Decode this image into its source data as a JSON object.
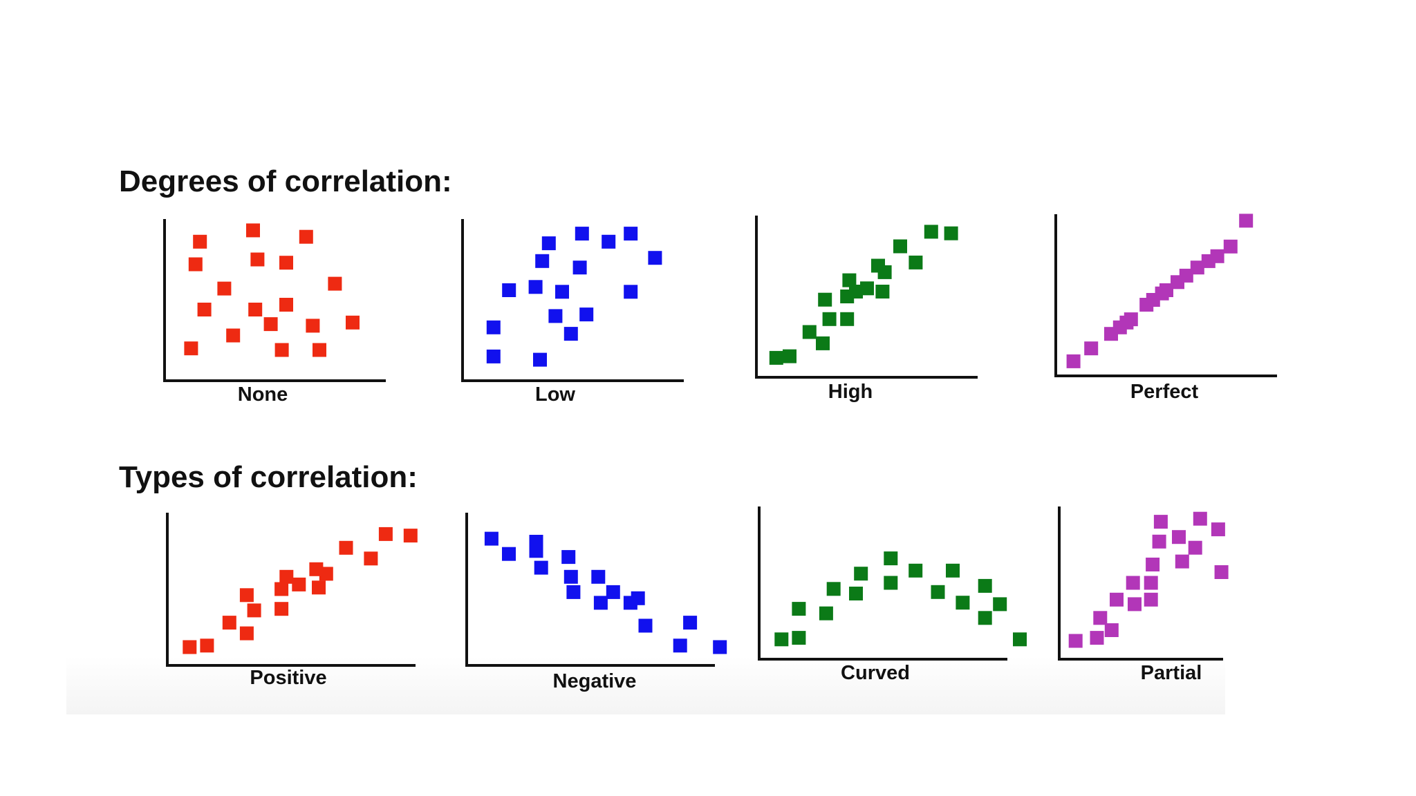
{
  "sections": [
    {
      "title": "Degrees of correlation:"
    },
    {
      "title": "Types of correlation:"
    }
  ],
  "chart_data": [
    {
      "type": "scatter",
      "xlabel": "None",
      "color": "#ee2a12",
      "xlim": [
        0,
        10
      ],
      "ylim": [
        0,
        10
      ],
      "points": [
        [
          1.6,
          8.6
        ],
        [
          4.0,
          9.3
        ],
        [
          6.4,
          8.9
        ],
        [
          1.4,
          7.2
        ],
        [
          4.2,
          7.5
        ],
        [
          5.5,
          7.3
        ],
        [
          2.7,
          5.7
        ],
        [
          7.7,
          6.0
        ],
        [
          1.8,
          4.4
        ],
        [
          4.1,
          4.4
        ],
        [
          5.5,
          4.7
        ],
        [
          6.7,
          3.4
        ],
        [
          3.1,
          2.8
        ],
        [
          4.8,
          3.5
        ],
        [
          8.5,
          3.6
        ],
        [
          1.2,
          2.0
        ],
        [
          5.3,
          1.9
        ],
        [
          7.0,
          1.9
        ]
      ]
    },
    {
      "type": "scatter",
      "xlabel": "Low",
      "color": "#1111ee",
      "xlim": [
        0,
        10
      ],
      "ylim": [
        0,
        10
      ],
      "points": [
        [
          1.4,
          3.3
        ],
        [
          1.4,
          1.5
        ],
        [
          3.5,
          1.3
        ],
        [
          2.1,
          5.6
        ],
        [
          3.3,
          5.8
        ],
        [
          4.5,
          5.5
        ],
        [
          3.6,
          7.4
        ],
        [
          4.2,
          4.0
        ],
        [
          5.6,
          4.1
        ],
        [
          4.9,
          2.9
        ],
        [
          3.9,
          8.5
        ],
        [
          5.3,
          7.0
        ],
        [
          5.4,
          9.1
        ],
        [
          6.6,
          8.6
        ],
        [
          7.6,
          9.1
        ],
        [
          8.7,
          7.6
        ],
        [
          7.6,
          5.5
        ]
      ]
    },
    {
      "type": "scatter",
      "xlabel": "High",
      "color": "#0b7a17",
      "xlim": [
        0,
        10
      ],
      "ylim": [
        0,
        10
      ],
      "points": [
        [
          0.9,
          1.2
        ],
        [
          1.5,
          1.3
        ],
        [
          2.4,
          2.8
        ],
        [
          3.0,
          2.1
        ],
        [
          3.1,
          4.8
        ],
        [
          3.3,
          3.6
        ],
        [
          4.1,
          3.6
        ],
        [
          4.1,
          5.0
        ],
        [
          4.2,
          6.0
        ],
        [
          4.5,
          5.3
        ],
        [
          5.0,
          5.5
        ],
        [
          5.5,
          6.9
        ],
        [
          5.8,
          6.5
        ],
        [
          5.7,
          5.3
        ],
        [
          6.5,
          8.1
        ],
        [
          7.2,
          7.1
        ],
        [
          7.9,
          9.0
        ],
        [
          8.8,
          8.9
        ]
      ]
    },
    {
      "type": "scatter",
      "xlabel": "Perfect",
      "color": "#b236b8",
      "xlim": [
        0,
        10
      ],
      "ylim": [
        0,
        10
      ],
      "points": [
        [
          0.8,
          0.9
        ],
        [
          1.6,
          1.7
        ],
        [
          2.5,
          2.6
        ],
        [
          2.9,
          3.0
        ],
        [
          3.2,
          3.3
        ],
        [
          3.4,
          3.5
        ],
        [
          4.1,
          4.4
        ],
        [
          4.4,
          4.7
        ],
        [
          4.8,
          5.1
        ],
        [
          5.0,
          5.3
        ],
        [
          5.5,
          5.8
        ],
        [
          5.9,
          6.2
        ],
        [
          6.4,
          6.7
        ],
        [
          6.9,
          7.1
        ],
        [
          7.3,
          7.4
        ],
        [
          7.9,
          8.0
        ],
        [
          8.6,
          9.6
        ]
      ]
    },
    {
      "type": "scatter",
      "xlabel": "Positive",
      "color": "#ee2a12",
      "xlim": [
        0,
        10
      ],
      "ylim": [
        0,
        10
      ],
      "points": [
        [
          0.9,
          1.2
        ],
        [
          1.6,
          1.3
        ],
        [
          2.5,
          2.8
        ],
        [
          3.2,
          2.1
        ],
        [
          3.2,
          4.6
        ],
        [
          3.5,
          3.6
        ],
        [
          4.6,
          3.7
        ],
        [
          4.6,
          5.0
        ],
        [
          4.8,
          5.8
        ],
        [
          5.3,
          5.3
        ],
        [
          6.0,
          6.3
        ],
        [
          6.4,
          6.0
        ],
        [
          6.1,
          5.1
        ],
        [
          7.2,
          7.7
        ],
        [
          8.2,
          7.0
        ],
        [
          8.8,
          8.6
        ],
        [
          9.8,
          8.5
        ]
      ]
    },
    {
      "type": "scatter",
      "xlabel": "Negative",
      "color": "#1111ee",
      "xlim": [
        0,
        10
      ],
      "ylim": [
        0,
        10
      ],
      "points": [
        [
          1.0,
          8.3
        ],
        [
          1.7,
          7.3
        ],
        [
          2.8,
          7.5
        ],
        [
          2.8,
          8.1
        ],
        [
          3.0,
          6.4
        ],
        [
          4.1,
          7.1
        ],
        [
          4.2,
          5.8
        ],
        [
          4.3,
          4.8
        ],
        [
          5.3,
          5.8
        ],
        [
          5.9,
          4.8
        ],
        [
          5.4,
          4.1
        ],
        [
          6.6,
          4.1
        ],
        [
          6.9,
          4.4
        ],
        [
          7.2,
          2.6
        ],
        [
          8.6,
          1.3
        ],
        [
          9.0,
          2.8
        ],
        [
          10.2,
          1.2
        ]
      ]
    },
    {
      "type": "scatter",
      "xlabel": "Curved",
      "color": "#0b7a17",
      "xlim": [
        0,
        10
      ],
      "ylim": [
        0,
        10
      ],
      "points": [
        [
          0.9,
          1.3
        ],
        [
          1.6,
          1.4
        ],
        [
          1.6,
          3.3
        ],
        [
          2.7,
          3.0
        ],
        [
          3.0,
          4.6
        ],
        [
          3.9,
          4.3
        ],
        [
          4.1,
          5.6
        ],
        [
          5.3,
          6.6
        ],
        [
          5.3,
          5.0
        ],
        [
          6.3,
          5.8
        ],
        [
          7.2,
          4.4
        ],
        [
          7.8,
          5.8
        ],
        [
          8.2,
          3.7
        ],
        [
          9.1,
          4.8
        ],
        [
          9.1,
          2.7
        ],
        [
          9.7,
          3.6
        ],
        [
          10.5,
          1.3
        ]
      ]
    },
    {
      "type": "scatter",
      "xlabel": "Partial",
      "color": "#b236b8",
      "xlim": [
        0,
        10
      ],
      "ylim": [
        0,
        10
      ],
      "points": [
        [
          1.0,
          1.2
        ],
        [
          2.3,
          1.4
        ],
        [
          2.5,
          2.7
        ],
        [
          3.2,
          1.9
        ],
        [
          3.5,
          3.9
        ],
        [
          4.6,
          3.6
        ],
        [
          4.5,
          5.0
        ],
        [
          5.6,
          3.9
        ],
        [
          5.6,
          5.0
        ],
        [
          5.7,
          6.2
        ],
        [
          6.1,
          7.7
        ],
        [
          6.2,
          9.0
        ],
        [
          7.3,
          8.0
        ],
        [
          7.5,
          6.4
        ],
        [
          8.3,
          7.3
        ],
        [
          8.6,
          9.2
        ],
        [
          9.7,
          8.5
        ],
        [
          9.9,
          5.7
        ]
      ]
    }
  ]
}
